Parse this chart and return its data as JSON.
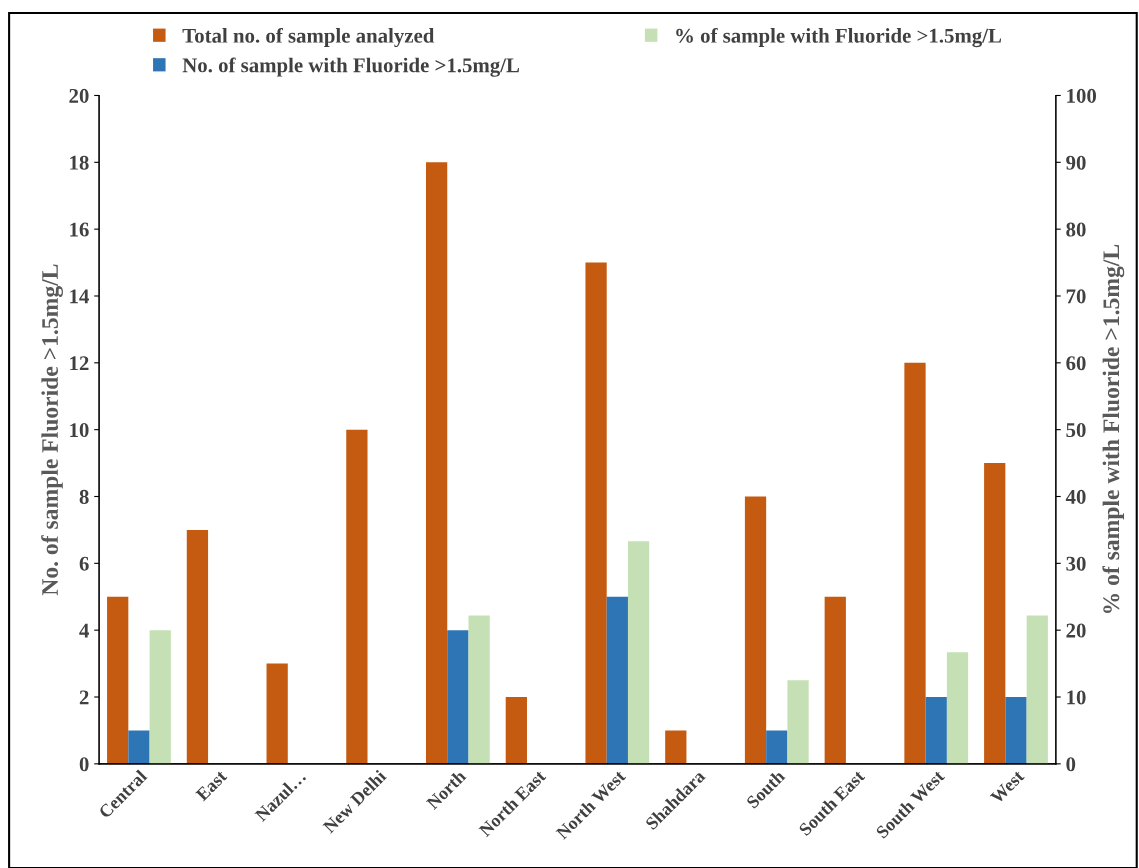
{
  "chart_data": {
    "type": "bar",
    "categories": [
      "Central",
      "East",
      "Nazul…",
      "New Delhi",
      "North",
      "North East",
      "North West",
      "Shahdara",
      "South",
      "South East",
      "South West",
      "West"
    ],
    "ylabel": "No. of sample Fluoride >1.5mg/L",
    "y2label": "% of sample with Fluoride >1.5mg/L",
    "series": [
      {
        "name": "Total no. of sample analyzed",
        "color": "#c55a11",
        "values": [
          5,
          7,
          3,
          10,
          18,
          2,
          15,
          1,
          8,
          5,
          12,
          9
        ]
      },
      {
        "name": "No. of sample with Fluoride >1.5mg/L",
        "color": "#2e75b6",
        "values": [
          1,
          0,
          0,
          0,
          4,
          0,
          5,
          0,
          1,
          0,
          2,
          2
        ]
      },
      {
        "name": "% of sample with Fluoride >1.5mg/L",
        "color": "#c5e0b4",
        "axis": "y2",
        "values": [
          20,
          0,
          0,
          0,
          22.2,
          0,
          33.3,
          0,
          12.5,
          0,
          16.7,
          22.2
        ]
      }
    ],
    "ylim": [
      0,
      20
    ],
    "yticks": [
      0,
      2,
      4,
      6,
      8,
      10,
      12,
      14,
      16,
      18,
      20
    ],
    "y2lim": [
      0,
      100
    ],
    "y2ticks": [
      0,
      10,
      20,
      30,
      40,
      50,
      60,
      70,
      80,
      90,
      100
    ],
    "grid": false,
    "legend": "top"
  }
}
